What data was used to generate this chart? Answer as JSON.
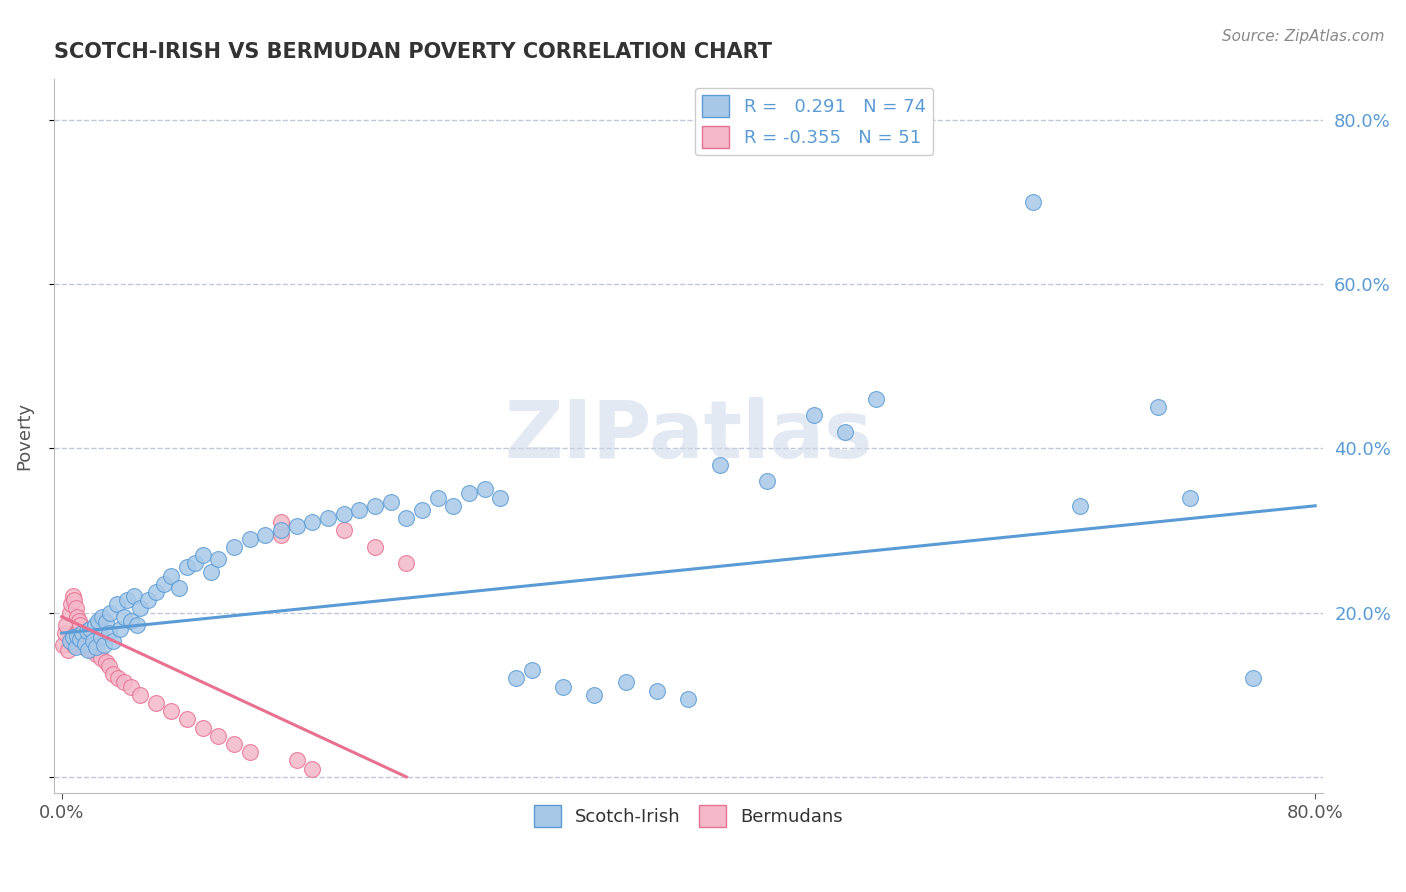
{
  "title": "SCOTCH-IRISH VS BERMUDAN POVERTY CORRELATION CHART",
  "source": "Source: ZipAtlas.com",
  "ylabel": "Poverty",
  "r_scotch": 0.291,
  "n_scotch": 74,
  "r_bermudan": -0.355,
  "n_bermudan": 51,
  "scotch_color": "#a8c8e8",
  "scotch_line_color": "#5b9bd5",
  "bermudan_color": "#f4b8c8",
  "bermudan_line_color": "#e87090",
  "background_color": "#ffffff",
  "grid_color": "#c0c8d8",
  "scotch_points_x": [
    0.005,
    0.007,
    0.009,
    0.01,
    0.012,
    0.013,
    0.015,
    0.016,
    0.017,
    0.018,
    0.02,
    0.021,
    0.022,
    0.023,
    0.025,
    0.026,
    0.027,
    0.028,
    0.03,
    0.031,
    0.033,
    0.035,
    0.037,
    0.04,
    0.042,
    0.044,
    0.046,
    0.048,
    0.05,
    0.055,
    0.06,
    0.065,
    0.07,
    0.075,
    0.08,
    0.085,
    0.09,
    0.095,
    0.1,
    0.11,
    0.12,
    0.13,
    0.14,
    0.15,
    0.16,
    0.17,
    0.18,
    0.19,
    0.2,
    0.21,
    0.22,
    0.23,
    0.24,
    0.25,
    0.26,
    0.27,
    0.28,
    0.29,
    0.3,
    0.32,
    0.34,
    0.36,
    0.38,
    0.4,
    0.42,
    0.45,
    0.48,
    0.5,
    0.52,
    0.62,
    0.65,
    0.7,
    0.72,
    0.76
  ],
  "scotch_points_y": [
    0.165,
    0.17,
    0.158,
    0.172,
    0.168,
    0.175,
    0.162,
    0.178,
    0.155,
    0.18,
    0.165,
    0.185,
    0.158,
    0.19,
    0.17,
    0.195,
    0.16,
    0.188,
    0.175,
    0.2,
    0.165,
    0.21,
    0.18,
    0.195,
    0.215,
    0.19,
    0.22,
    0.185,
    0.205,
    0.215,
    0.225,
    0.235,
    0.245,
    0.23,
    0.255,
    0.26,
    0.27,
    0.25,
    0.265,
    0.28,
    0.29,
    0.295,
    0.3,
    0.305,
    0.31,
    0.315,
    0.32,
    0.325,
    0.33,
    0.335,
    0.315,
    0.325,
    0.34,
    0.33,
    0.345,
    0.35,
    0.34,
    0.12,
    0.13,
    0.11,
    0.1,
    0.115,
    0.105,
    0.095,
    0.38,
    0.36,
    0.44,
    0.42,
    0.46,
    0.7,
    0.33,
    0.45,
    0.34,
    0.12
  ],
  "bermudan_points_x": [
    0.001,
    0.002,
    0.003,
    0.004,
    0.005,
    0.006,
    0.006,
    0.007,
    0.007,
    0.008,
    0.008,
    0.009,
    0.009,
    0.01,
    0.01,
    0.011,
    0.011,
    0.012,
    0.012,
    0.013,
    0.013,
    0.014,
    0.015,
    0.016,
    0.017,
    0.018,
    0.019,
    0.02,
    0.022,
    0.025,
    0.028,
    0.03,
    0.033,
    0.036,
    0.04,
    0.044,
    0.05,
    0.06,
    0.07,
    0.08,
    0.09,
    0.1,
    0.11,
    0.12,
    0.14,
    0.15,
    0.16,
    0.18,
    0.2,
    0.22,
    0.14
  ],
  "bermudan_points_y": [
    0.16,
    0.175,
    0.185,
    0.155,
    0.2,
    0.165,
    0.21,
    0.17,
    0.22,
    0.16,
    0.215,
    0.175,
    0.205,
    0.168,
    0.195,
    0.18,
    0.19,
    0.17,
    0.185,
    0.175,
    0.165,
    0.158,
    0.172,
    0.162,
    0.178,
    0.168,
    0.155,
    0.16,
    0.15,
    0.145,
    0.14,
    0.135,
    0.125,
    0.12,
    0.115,
    0.11,
    0.1,
    0.09,
    0.08,
    0.07,
    0.06,
    0.05,
    0.04,
    0.03,
    0.295,
    0.02,
    0.01,
    0.3,
    0.28,
    0.26,
    0.31
  ],
  "scotch_trend_x0": 0.0,
  "scotch_trend_x1": 0.8,
  "scotch_trend_y0": 0.175,
  "scotch_trend_y1": 0.33,
  "bermudan_trend_x0": 0.0,
  "bermudan_trend_x1": 0.22,
  "bermudan_trend_y0": 0.195,
  "bermudan_trend_y1": 0.0,
  "ytick_vals": [
    0.0,
    0.2,
    0.4,
    0.6,
    0.8
  ],
  "ytick_labels": [
    "",
    "20.0%",
    "40.0%",
    "60.0%",
    "80.0%"
  ],
  "xlim": [
    -0.005,
    0.805
  ],
  "ylim": [
    -0.02,
    0.85
  ]
}
